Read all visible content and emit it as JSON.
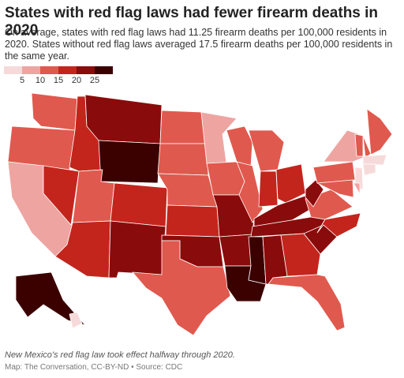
{
  "chart_data": {
    "type": "choropleth",
    "title": "States with red flag laws had fewer firearm deaths in 2020",
    "subtitle": "On average, states with red flag laws had 11.25 firearm deaths per 100,000 residents in 2020. States without red flag laws averaged 17.5 firearm deaths per 100,000 residents in the same year.",
    "legend_ticks": [
      5,
      10,
      15,
      20,
      25
    ],
    "legend_colors": [
      "#f6dada",
      "#eea5a2",
      "#e0594e",
      "#c3251d",
      "#8a0b0b",
      "#3b0000"
    ],
    "values": [
      13,
      13,
      8,
      18,
      18,
      22,
      28,
      13,
      18,
      18,
      22,
      13,
      13,
      13,
      18,
      22,
      13,
      8,
      13,
      22,
      22,
      28,
      13,
      13,
      13,
      18,
      18,
      22,
      22,
      28,
      22,
      18,
      13,
      22,
      18,
      13,
      22,
      13,
      8,
      13,
      13,
      13,
      4,
      4,
      4,
      13,
      8,
      28,
      4
    ],
    "note": "New Mexico's red flag law took effect halfway through 2020.",
    "source": "Map: The Conversation, CC-BY-ND • Source: CDC"
  }
}
